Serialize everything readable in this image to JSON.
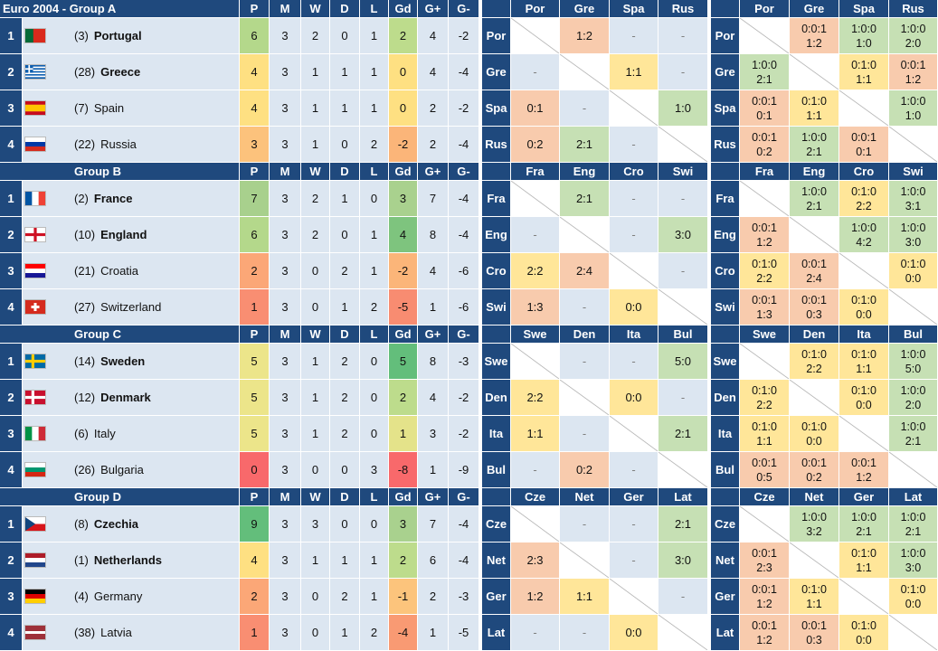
{
  "columns": [
    "P",
    "M",
    "W",
    "D",
    "L",
    "Gd",
    "G+",
    "G-"
  ],
  "groups": [
    {
      "label": "Euro 2004  -  Group A",
      "abbr": [
        "Por",
        "Gre",
        "Spa",
        "Rus"
      ],
      "teams": [
        {
          "rank": 1,
          "seed": "(3)",
          "name": "Portugal",
          "bold": true,
          "stats": [
            6,
            3,
            2,
            0,
            1,
            2,
            4,
            -2
          ],
          "p_color": "#b4d88b",
          "gd_color": "#bddc8c"
        },
        {
          "rank": 2,
          "seed": "(28)",
          "name": "Greece",
          "bold": true,
          "stats": [
            4,
            3,
            1,
            1,
            1,
            0,
            4,
            -4
          ],
          "p_color": "#fee082",
          "gd_color": "#fee082"
        },
        {
          "rank": 3,
          "seed": "(7)",
          "name": "Spain",
          "bold": false,
          "stats": [
            4,
            3,
            1,
            1,
            1,
            0,
            2,
            -2
          ],
          "p_color": "#fee082",
          "gd_color": "#fee082"
        },
        {
          "rank": 4,
          "seed": "(22)",
          "name": "Russia",
          "bold": false,
          "stats": [
            3,
            3,
            1,
            0,
            2,
            -2,
            2,
            -4
          ],
          "p_color": "#fcc27c",
          "gd_color": "#fbb579"
        }
      ],
      "results": [
        [
          null,
          {
            "text": "1:2",
            "color": "#f8cbad"
          },
          {
            "text": "-"
          },
          {
            "text": "-"
          }
        ],
        [
          {
            "text": "-"
          },
          null,
          {
            "text": "1:1",
            "color": "#ffe699"
          },
          {
            "text": "-"
          }
        ],
        [
          {
            "text": "0:1",
            "color": "#f8cbad"
          },
          {
            "text": "-"
          },
          null,
          {
            "text": "1:0",
            "color": "#c6e0b4"
          }
        ],
        [
          {
            "text": "0:2",
            "color": "#f8cbad"
          },
          {
            "text": "2:1",
            "color": "#c6e0b4"
          },
          {
            "text": "-"
          },
          null
        ]
      ],
      "details": [
        [
          null,
          {
            "record": "0:0:1",
            "score": "1:2",
            "color": "#f8cbad"
          },
          {
            "record": "1:0:0",
            "score": "1:0",
            "color": "#c6e0b4"
          },
          {
            "record": "1:0:0",
            "score": "2:0",
            "color": "#c6e0b4"
          }
        ],
        [
          {
            "record": "1:0:0",
            "score": "2:1",
            "color": "#c6e0b4"
          },
          null,
          {
            "record": "0:1:0",
            "score": "1:1",
            "color": "#ffe699"
          },
          {
            "record": "0:0:1",
            "score": "1:2",
            "color": "#f8cbad"
          }
        ],
        [
          {
            "record": "0:0:1",
            "score": "0:1",
            "color": "#f8cbad"
          },
          {
            "record": "0:1:0",
            "score": "1:1",
            "color": "#ffe699"
          },
          null,
          {
            "record": "1:0:0",
            "score": "1:0",
            "color": "#c6e0b4"
          }
        ],
        [
          {
            "record": "0:0:1",
            "score": "0:2",
            "color": "#f8cbad"
          },
          {
            "record": "1:0:0",
            "score": "2:1",
            "color": "#c6e0b4"
          },
          {
            "record": "0:0:1",
            "score": "0:1",
            "color": "#f8cbad"
          },
          null
        ]
      ]
    },
    {
      "label": "Group B",
      "abbr": [
        "Fra",
        "Eng",
        "Cro",
        "Swi"
      ],
      "teams": [
        {
          "rank": 1,
          "seed": "(2)",
          "name": "France",
          "bold": true,
          "stats": [
            7,
            3,
            2,
            1,
            0,
            3,
            7,
            -4
          ],
          "p_color": "#a8d08d",
          "gd_color": "#a9d18e"
        },
        {
          "rank": 2,
          "seed": "(10)",
          "name": "England",
          "bold": true,
          "stats": [
            6,
            3,
            2,
            0,
            1,
            4,
            8,
            -4
          ],
          "p_color": "#b4d88b",
          "gd_color": "#7ec47e"
        },
        {
          "rank": 3,
          "seed": "(21)",
          "name": "Croatia",
          "bold": false,
          "stats": [
            2,
            3,
            0,
            2,
            1,
            -2,
            4,
            -6
          ],
          "p_color": "#fba777",
          "gd_color": "#fbb579"
        },
        {
          "rank": 4,
          "seed": "(27)",
          "name": "Switzerland",
          "bold": false,
          "stats": [
            1,
            3,
            0,
            1,
            2,
            -5,
            1,
            -6
          ],
          "p_color": "#f98e72",
          "gd_color": "#f88c71"
        }
      ],
      "results": [
        [
          null,
          {
            "text": "2:1",
            "color": "#c6e0b4"
          },
          {
            "text": "-"
          },
          {
            "text": "-"
          }
        ],
        [
          {
            "text": "-"
          },
          null,
          {
            "text": "-"
          },
          {
            "text": "3:0",
            "color": "#c6e0b4"
          }
        ],
        [
          {
            "text": "2:2",
            "color": "#ffe699"
          },
          {
            "text": "2:4",
            "color": "#f8cbad"
          },
          null,
          {
            "text": "-"
          }
        ],
        [
          {
            "text": "1:3",
            "color": "#f8cbad"
          },
          {
            "text": "-"
          },
          {
            "text": "0:0",
            "color": "#ffe699"
          },
          null
        ]
      ],
      "details": [
        [
          null,
          {
            "record": "1:0:0",
            "score": "2:1",
            "color": "#c6e0b4"
          },
          {
            "record": "0:1:0",
            "score": "2:2",
            "color": "#ffe699"
          },
          {
            "record": "1:0:0",
            "score": "3:1",
            "color": "#c6e0b4"
          }
        ],
        [
          {
            "record": "0:0:1",
            "score": "1:2",
            "color": "#f8cbad"
          },
          null,
          {
            "record": "1:0:0",
            "score": "4:2",
            "color": "#c6e0b4"
          },
          {
            "record": "1:0:0",
            "score": "3:0",
            "color": "#c6e0b4"
          }
        ],
        [
          {
            "record": "0:1:0",
            "score": "2:2",
            "color": "#ffe699"
          },
          {
            "record": "0:0:1",
            "score": "2:4",
            "color": "#f8cbad"
          },
          null,
          {
            "record": "0:1:0",
            "score": "0:0",
            "color": "#ffe699"
          }
        ],
        [
          {
            "record": "0:0:1",
            "score": "1:3",
            "color": "#f8cbad"
          },
          {
            "record": "0:0:1",
            "score": "0:3",
            "color": "#f8cbad"
          },
          {
            "record": "0:1:0",
            "score": "0:0",
            "color": "#ffe699"
          },
          null
        ]
      ]
    },
    {
      "label": "Group C",
      "abbr": [
        "Swe",
        "Den",
        "Ita",
        "Bul"
      ],
      "teams": [
        {
          "rank": 1,
          "seed": "(14)",
          "name": "Sweden",
          "bold": true,
          "stats": [
            5,
            3,
            1,
            2,
            0,
            5,
            8,
            -3
          ],
          "p_color": "#ece58a",
          "gd_color": "#63be7b"
        },
        {
          "rank": 2,
          "seed": "(12)",
          "name": "Denmark",
          "bold": true,
          "stats": [
            5,
            3,
            1,
            2,
            0,
            2,
            4,
            -2
          ],
          "p_color": "#ece58a",
          "gd_color": "#bddc8c"
        },
        {
          "rank": 3,
          "seed": "(6)",
          "name": "Italy",
          "bold": false,
          "stats": [
            5,
            3,
            1,
            2,
            0,
            1,
            3,
            -2
          ],
          "p_color": "#ece58a",
          "gd_color": "#e4e38a"
        },
        {
          "rank": 4,
          "seed": "(26)",
          "name": "Bulgaria",
          "bold": false,
          "stats": [
            0,
            3,
            0,
            0,
            3,
            -8,
            1,
            -9
          ],
          "p_color": "#f8696b",
          "gd_color": "#f8696b"
        }
      ],
      "results": [
        [
          null,
          {
            "text": "-"
          },
          {
            "text": "-"
          },
          {
            "text": "5:0",
            "color": "#c6e0b4"
          }
        ],
        [
          {
            "text": "2:2",
            "color": "#ffe699"
          },
          null,
          {
            "text": "0:0",
            "color": "#ffe699"
          },
          {
            "text": "-"
          }
        ],
        [
          {
            "text": "1:1",
            "color": "#ffe699"
          },
          {
            "text": "-"
          },
          null,
          {
            "text": "2:1",
            "color": "#c6e0b4"
          }
        ],
        [
          {
            "text": "-"
          },
          {
            "text": "0:2",
            "color": "#f8cbad"
          },
          {
            "text": "-"
          },
          null
        ]
      ],
      "details": [
        [
          null,
          {
            "record": "0:1:0",
            "score": "2:2",
            "color": "#ffe699"
          },
          {
            "record": "0:1:0",
            "score": "1:1",
            "color": "#ffe699"
          },
          {
            "record": "1:0:0",
            "score": "5:0",
            "color": "#c6e0b4"
          }
        ],
        [
          {
            "record": "0:1:0",
            "score": "2:2",
            "color": "#ffe699"
          },
          null,
          {
            "record": "0:1:0",
            "score": "0:0",
            "color": "#ffe699"
          },
          {
            "record": "1:0:0",
            "score": "2:0",
            "color": "#c6e0b4"
          }
        ],
        [
          {
            "record": "0:1:0",
            "score": "1:1",
            "color": "#ffe699"
          },
          {
            "record": "0:1:0",
            "score": "0:0",
            "color": "#ffe699"
          },
          null,
          {
            "record": "1:0:0",
            "score": "2:1",
            "color": "#c6e0b4"
          }
        ],
        [
          {
            "record": "0:0:1",
            "score": "0:5",
            "color": "#f8cbad"
          },
          {
            "record": "0:0:1",
            "score": "0:2",
            "color": "#f8cbad"
          },
          {
            "record": "0:0:1",
            "score": "1:2",
            "color": "#f8cbad"
          },
          null
        ]
      ]
    },
    {
      "label": "Group D",
      "abbr": [
        "Cze",
        "Net",
        "Ger",
        "Lat"
      ],
      "teams": [
        {
          "rank": 1,
          "seed": "(8)",
          "name": "Czechia",
          "bold": true,
          "stats": [
            9,
            3,
            3,
            0,
            0,
            3,
            7,
            -4
          ],
          "p_color": "#63be7b",
          "gd_color": "#a9d18e"
        },
        {
          "rank": 2,
          "seed": "(1)",
          "name": "Netherlands",
          "bold": true,
          "stats": [
            4,
            3,
            1,
            1,
            1,
            2,
            6,
            -4
          ],
          "p_color": "#fee082",
          "gd_color": "#bddc8c"
        },
        {
          "rank": 3,
          "seed": "(4)",
          "name": "Germany",
          "bold": false,
          "stats": [
            2,
            3,
            0,
            2,
            1,
            -1,
            2,
            -3
          ],
          "p_color": "#fba777",
          "gd_color": "#fcc47c"
        },
        {
          "rank": 4,
          "seed": "(38)",
          "name": "Latvia",
          "bold": false,
          "stats": [
            1,
            3,
            0,
            1,
            2,
            -4,
            1,
            -5
          ],
          "p_color": "#f98e72",
          "gd_color": "#f99a73"
        }
      ],
      "results": [
        [
          null,
          {
            "text": "-"
          },
          {
            "text": "-"
          },
          {
            "text": "2:1",
            "color": "#c6e0b4"
          }
        ],
        [
          {
            "text": "2:3",
            "color": "#f8cbad"
          },
          null,
          {
            "text": "-"
          },
          {
            "text": "3:0",
            "color": "#c6e0b4"
          }
        ],
        [
          {
            "text": "1:2",
            "color": "#f8cbad"
          },
          {
            "text": "1:1",
            "color": "#ffe699"
          },
          null,
          {
            "text": "-"
          }
        ],
        [
          {
            "text": "-"
          },
          {
            "text": "-"
          },
          {
            "text": "0:0",
            "color": "#ffe699"
          },
          null
        ]
      ],
      "details": [
        [
          null,
          {
            "record": "1:0:0",
            "score": "3:2",
            "color": "#c6e0b4"
          },
          {
            "record": "1:0:0",
            "score": "2:1",
            "color": "#c6e0b4"
          },
          {
            "record": "1:0:0",
            "score": "2:1",
            "color": "#c6e0b4"
          }
        ],
        [
          {
            "record": "0:0:1",
            "score": "2:3",
            "color": "#f8cbad"
          },
          null,
          {
            "record": "0:1:0",
            "score": "1:1",
            "color": "#ffe699"
          },
          {
            "record": "1:0:0",
            "score": "3:0",
            "color": "#c6e0b4"
          }
        ],
        [
          {
            "record": "0:0:1",
            "score": "1:2",
            "color": "#f8cbad"
          },
          {
            "record": "0:1:0",
            "score": "1:1",
            "color": "#ffe699"
          },
          null,
          {
            "record": "0:1:0",
            "score": "0:0",
            "color": "#ffe699"
          }
        ],
        [
          {
            "record": "0:0:1",
            "score": "1:2",
            "color": "#f8cbad"
          },
          {
            "record": "0:0:1",
            "score": "0:3",
            "color": "#f8cbad"
          },
          {
            "record": "0:1:0",
            "score": "0:0",
            "color": "#ffe699"
          },
          null
        ]
      ]
    }
  ]
}
